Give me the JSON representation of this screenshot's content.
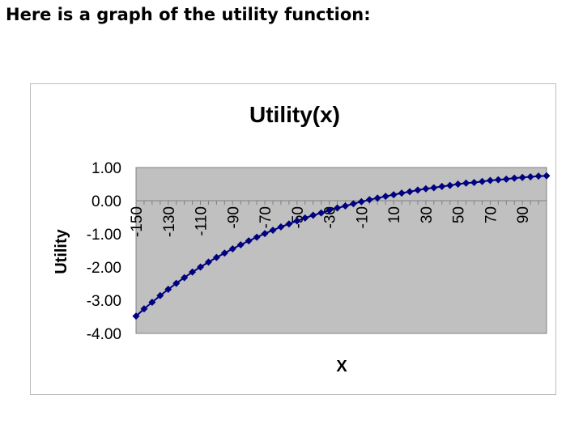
{
  "heading": "Here is a graph of the utility function:",
  "chart_data": {
    "type": "line",
    "title": "Utility(x)",
    "xlabel": "X",
    "ylabel": "Utility",
    "ylim": [
      -4,
      1
    ],
    "yticks": [
      "1.00",
      "0.00",
      "-1.00",
      "-2.00",
      "-3.00",
      "-4.00"
    ],
    "xticks": [
      "-150",
      "-130",
      "-110",
      "-90",
      "-70",
      "-50",
      "-30",
      "-10",
      "10",
      "30",
      "50",
      "70",
      "90"
    ],
    "x_axis_at_y": 0,
    "xlim": [
      -150,
      105
    ],
    "grid": false,
    "legend": "none",
    "colors": {
      "series": "#000080",
      "plot_area": "#c0c0c0"
    },
    "series": [
      {
        "marker": "diamond",
        "x": [
          -150,
          -145,
          -140,
          -135,
          -130,
          -125,
          -120,
          -115,
          -110,
          -105,
          -100,
          -95,
          -90,
          -85,
          -80,
          -75,
          -70,
          -65,
          -60,
          -55,
          -50,
          -45,
          -40,
          -35,
          -30,
          -25,
          -20,
          -15,
          -10,
          -5,
          0,
          5,
          10,
          15,
          20,
          25,
          30,
          35,
          40,
          45,
          50,
          55,
          60,
          65,
          70,
          75,
          80,
          85,
          90,
          95,
          100,
          105
        ],
        "y": [
          -3.48,
          -3.26,
          -3.06,
          -2.86,
          -2.67,
          -2.49,
          -2.32,
          -2.15,
          -2.0,
          -1.85,
          -1.71,
          -1.58,
          -1.45,
          -1.33,
          -1.21,
          -1.1,
          -0.99,
          -0.89,
          -0.79,
          -0.7,
          -0.61,
          -0.52,
          -0.44,
          -0.37,
          -0.29,
          -0.22,
          -0.16,
          -0.09,
          -0.03,
          0.03,
          0.08,
          0.13,
          0.18,
          0.23,
          0.27,
          0.32,
          0.36,
          0.39,
          0.43,
          0.46,
          0.5,
          0.53,
          0.55,
          0.58,
          0.61,
          0.63,
          0.65,
          0.68,
          0.7,
          0.72,
          0.74,
          0.75
        ]
      }
    ]
  }
}
